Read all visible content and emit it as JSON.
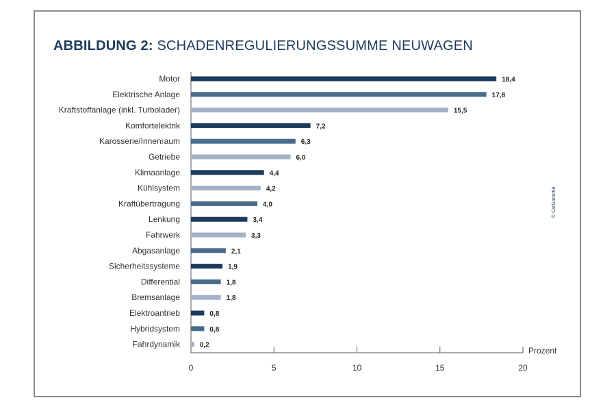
{
  "title": {
    "bold": "ABBILDUNG 2:",
    "rest": " SCHADENREGULIERUNGSSUMME NEUWAGEN"
  },
  "copyright": "© CarGarantie",
  "colors": {
    "dark": "#1c3a5c",
    "mid": "#4a6b8c",
    "light": "#a3b2c8",
    "title": "#1c3a5c"
  },
  "chart_data": {
    "type": "bar",
    "orientation": "horizontal",
    "title": "ABBILDUNG 2: SCHADENREGULIERUNGSSUMME NEUWAGEN",
    "xlabel": "Prozent",
    "ylabel": "",
    "xlim": [
      0,
      20
    ],
    "xticks": [
      0,
      5,
      10,
      15,
      20
    ],
    "grid": false,
    "categories": [
      "Motor",
      "Elektrische Anlage",
      "Kraftstoffanlage (inkl. Turbolader)",
      "Komfortelektrik",
      "Karosserie/Innenraum",
      "Getriebe",
      "Klimaanlage",
      "Kühlsystem",
      "Kraftübertragung",
      "Lenkung",
      "Fahrwerk",
      "Abgasanlage",
      "Sicherheitssysteme",
      "Differential",
      "Bremsanlage",
      "Elektroantrieb",
      "Hybridsystem",
      "Fahrdynamik"
    ],
    "values": [
      18.4,
      17.8,
      15.5,
      7.2,
      6.3,
      6.0,
      4.4,
      4.2,
      4.0,
      3.4,
      3.3,
      2.1,
      1.9,
      1.8,
      1.8,
      0.8,
      0.8,
      0.2
    ],
    "value_labels": [
      "18,4",
      "17,8",
      "15,5",
      "7,2",
      "6,3",
      "6,0",
      "4,4",
      "4,2",
      "4,0",
      "3,4",
      "3,3",
      "2,1",
      "1,9",
      "1,8",
      "1,8",
      "0,8",
      "0,8",
      "0,2"
    ],
    "tick_labels": [
      "0",
      "5",
      "10",
      "15",
      "20"
    ],
    "bar_colors": [
      "dark",
      "mid",
      "light",
      "dark",
      "mid",
      "light",
      "dark",
      "light",
      "mid",
      "dark",
      "light",
      "mid",
      "dark",
      "mid",
      "light",
      "dark",
      "mid",
      "light"
    ]
  }
}
